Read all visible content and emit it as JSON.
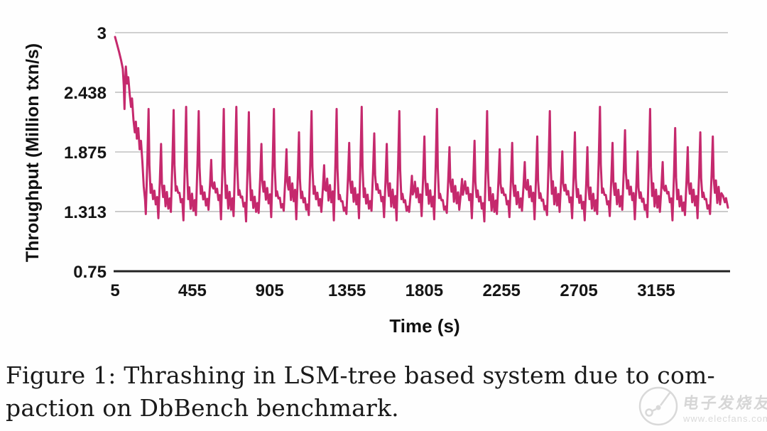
{
  "figure": {
    "caption_line1": "Figure 1: Thrashing in LSM-tree based system due to com-",
    "caption_line2": "paction on DbBench benchmark."
  },
  "watermark": {
    "logo": "circuit-trace-logo",
    "brand": "电子发烧友",
    "url": "www.elecfans.com"
  },
  "chart_data": {
    "type": "line",
    "title": "",
    "xlabel": "Time (s)",
    "ylabel": "Throughput (Million txn/s)",
    "x_ticks": [
      "5",
      "455",
      "905",
      "1355",
      "1805",
      "2255",
      "2705",
      "3155"
    ],
    "y_ticks": [
      "3",
      "2.438",
      "1.875",
      "1.313",
      "0.75"
    ],
    "xlim": [
      5,
      3573
    ],
    "ylim": [
      0.75,
      3
    ],
    "grid": "horizontal-only",
    "legend": "none",
    "colors": {
      "line": "#c5296d",
      "grid": "#b5b5b5",
      "axis": "#222222"
    },
    "series": [
      {
        "name": "Throughput",
        "color": "#c5296d",
        "prelude": [
          [
            5,
            2.96
          ],
          [
            15,
            2.9
          ],
          [
            28,
            2.82
          ],
          [
            40,
            2.74
          ],
          [
            50,
            2.66
          ],
          [
            56,
            2.5
          ],
          [
            60,
            2.28
          ],
          [
            64,
            2.55
          ],
          [
            68,
            2.68
          ],
          [
            75,
            2.52
          ],
          [
            82,
            2.58
          ],
          [
            90,
            2.42
          ],
          [
            98,
            2.3
          ],
          [
            104,
            2.38
          ],
          [
            112,
            2.18
          ],
          [
            120,
            2.06
          ],
          [
            126,
            2.16
          ],
          [
            132,
            2.0
          ],
          [
            140,
            2.1
          ],
          [
            148,
            1.9
          ],
          [
            156,
            1.98
          ],
          [
            164,
            1.78
          ],
          [
            172,
            1.55
          ],
          [
            180,
            1.42
          ]
        ],
        "spike_times": [
          200,
          273,
          346,
          419,
          492,
          565,
          638,
          711,
          784,
          857,
          930,
          1003,
          1076,
          1149,
          1222,
          1295,
          1368,
          1441,
          1514,
          1587,
          1660,
          1733,
          1806,
          1879,
          1952,
          2025,
          2098,
          2171,
          2244,
          2317,
          2390,
          2463,
          2536,
          2609,
          2682,
          2755,
          2828,
          2901,
          2974,
          3047,
          3120,
          3193,
          3266,
          3339,
          3412,
          3485
        ],
        "spike_peaks": [
          2.28,
          1.95,
          2.27,
          2.3,
          2.26,
          1.8,
          2.28,
          2.3,
          2.25,
          1.95,
          2.28,
          1.9,
          2.06,
          2.26,
          1.75,
          2.28,
          1.96,
          2.3,
          2.05,
          1.95,
          2.26,
          1.65,
          2.02,
          2.28,
          1.92,
          1.62,
          1.98,
          2.26,
          1.9,
          1.96,
          1.78,
          2.02,
          2.26,
          1.88,
          2.06,
          1.92,
          2.3,
          1.96,
          2.08,
          1.88,
          2.28,
          1.78,
          2.1,
          1.92,
          2.06,
          2.02
        ],
        "spike_valleys": [
          1.31,
          1.27,
          1.33,
          1.25,
          1.3,
          1.35,
          1.26,
          1.29,
          1.24,
          1.32,
          1.28,
          1.34,
          1.26,
          1.3,
          1.33,
          1.25,
          1.31,
          1.27,
          1.34,
          1.28,
          1.25,
          1.33,
          1.29,
          1.26,
          1.32,
          1.35,
          1.27,
          1.24,
          1.31,
          1.28,
          1.34,
          1.26,
          1.3,
          1.33,
          1.27,
          1.25,
          1.31,
          1.29,
          1.35,
          1.26,
          1.28,
          1.33,
          1.25,
          1.3,
          1.27,
          1.31
        ],
        "tail": [
          [
            3545,
            1.46
          ],
          [
            3555,
            1.4
          ],
          [
            3562,
            1.44
          ],
          [
            3573,
            1.35
          ]
        ]
      }
    ]
  }
}
